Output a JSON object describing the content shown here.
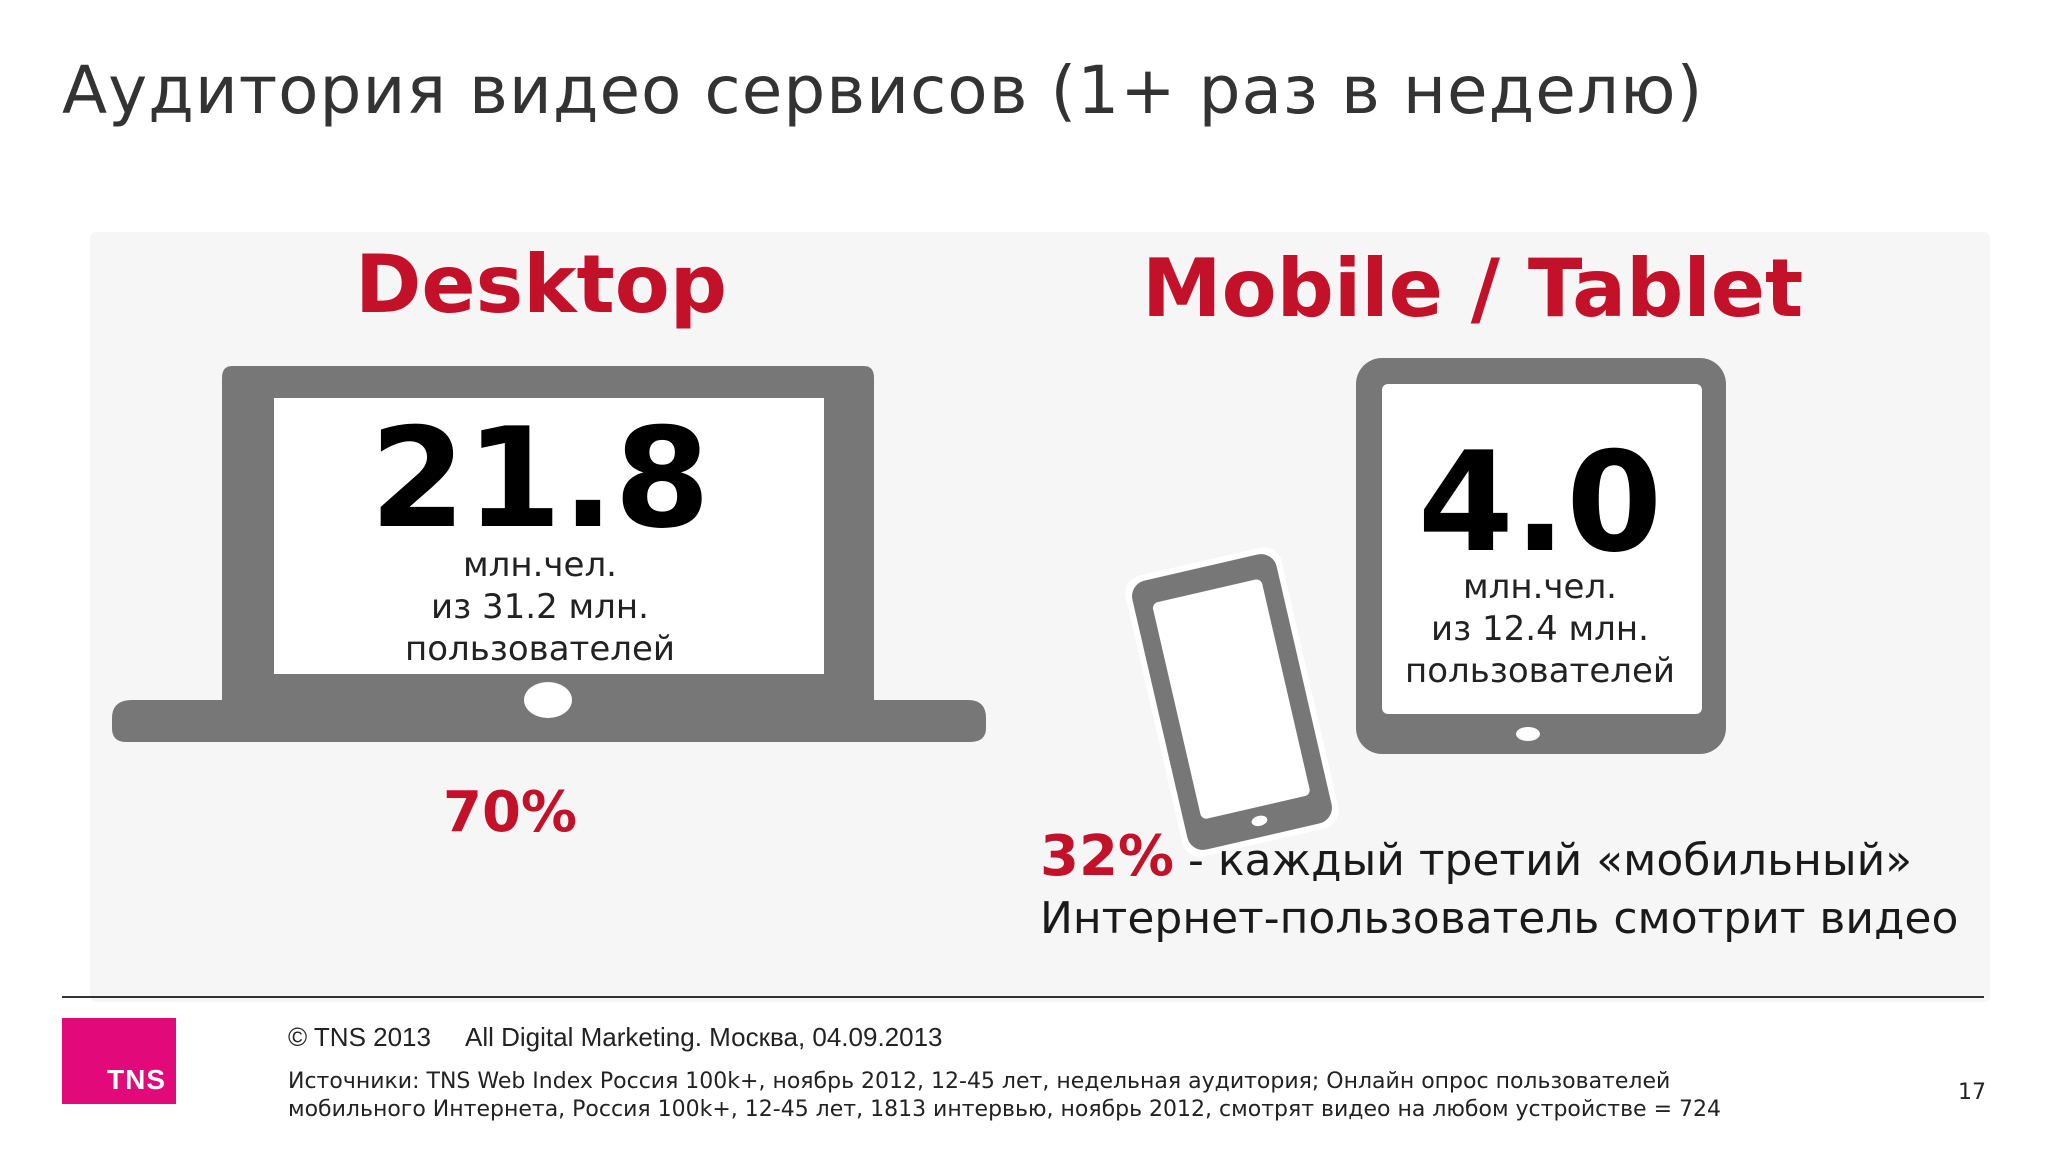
{
  "title": "Аудитория видео сервисов (1+ раз в неделю)",
  "desktop": {
    "heading": "Desktop",
    "value": "21.8",
    "unit_line1": "млн.чел.",
    "unit_line2": "из 31.2 млн.",
    "unit_line3": "пользователей",
    "percent": "70%",
    "icon": "laptop-icon"
  },
  "mobile": {
    "heading": "Mobile / Tablet",
    "value": "4.0",
    "unit_line1": "млн.чел.",
    "unit_line2": "из 12.4 млн.",
    "unit_line3": "пользователей",
    "percent": "32%",
    "caption_line1": " - каждый третий «мобильный»",
    "caption_line2": "Интернет-пользователь смотрит видео",
    "icons": [
      "tablet-icon",
      "smartphone-icon"
    ]
  },
  "footer": {
    "copyright": "© TNS 2013",
    "event": "All Digital Marketing. Москва, 04.09.2013",
    "sources_line1": "Источники: TNS Web Index Россия 100k+, ноябрь 2012, 12-45 лет,  недельная аудитория; Онлайн опрос пользователей",
    "sources_line2": "мобильного Интернета, Россия 100k+, 12-45 лет, 1813 интервью, ноябрь 2012, смотрят видео на любом устройстве = 724",
    "logo_text": "TNS",
    "page_number": "17"
  },
  "colors": {
    "accent_red": "#c3112a",
    "device_gray": "#777777",
    "logo_magenta": "#e2097a"
  }
}
